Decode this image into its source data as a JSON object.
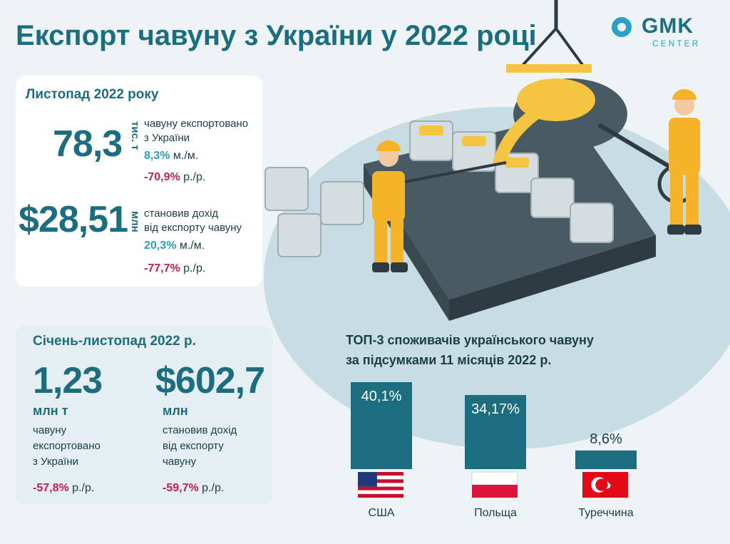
{
  "title": "Експорт чавуну з України у 2022 році",
  "logo": {
    "main": "GMK",
    "sub": "CENTER"
  },
  "november": {
    "heading": "Листопад 2022 року",
    "volume": {
      "value": "78,3",
      "unit": "тис. т",
      "desc_line1": "чавуну експортовано",
      "desc_line2": "з України",
      "mm": "8,3%",
      "mm_suffix": " м./м.",
      "yy": "-70,9%",
      "yy_suffix": " р./р."
    },
    "revenue": {
      "value": "$28,51",
      "unit": "млн",
      "desc_line1": "становив дохід",
      "desc_line2": "від експорту чавуну",
      "mm": "20,3%",
      "mm_suffix": " м./м.",
      "yy": "-77,7%",
      "yy_suffix": " р./р."
    }
  },
  "jan_nov": {
    "heading": "Січень-листопад 2022 р.",
    "volume": {
      "value": "1,23",
      "unit": "млн т",
      "desc_line1": "чавуну",
      "desc_line2": "експортовано",
      "desc_line3": "з України",
      "yy": "-57,8%",
      "yy_suffix": " р./р."
    },
    "revenue": {
      "value": "$602,7",
      "unit": "млн",
      "desc_line1": "становив дохід",
      "desc_line2": "від експорту",
      "desc_line3": "чавуну",
      "yy": "-59,7%",
      "yy_suffix": " р./р."
    }
  },
  "colors": {
    "teal": "#1c6e7f",
    "bar": "#1c6e7f",
    "positive": "#2aa0b4",
    "negative": "#c01d4f"
  },
  "chart_data": {
    "type": "bar",
    "title_line1": "ТОП-3 споживачів українського чавуну",
    "title_line2": "за підсумками 11 місяців 2022 р.",
    "categories": [
      "США",
      "Польща",
      "Туреччина"
    ],
    "values": [
      40.1,
      34.17,
      8.6
    ],
    "value_labels": [
      "40,1%",
      "34,17%",
      "8,6%"
    ],
    "flags": [
      "usa-flag",
      "poland-flag",
      "turkey-flag"
    ],
    "ylim": [
      0,
      40.1
    ],
    "grid": false
  }
}
